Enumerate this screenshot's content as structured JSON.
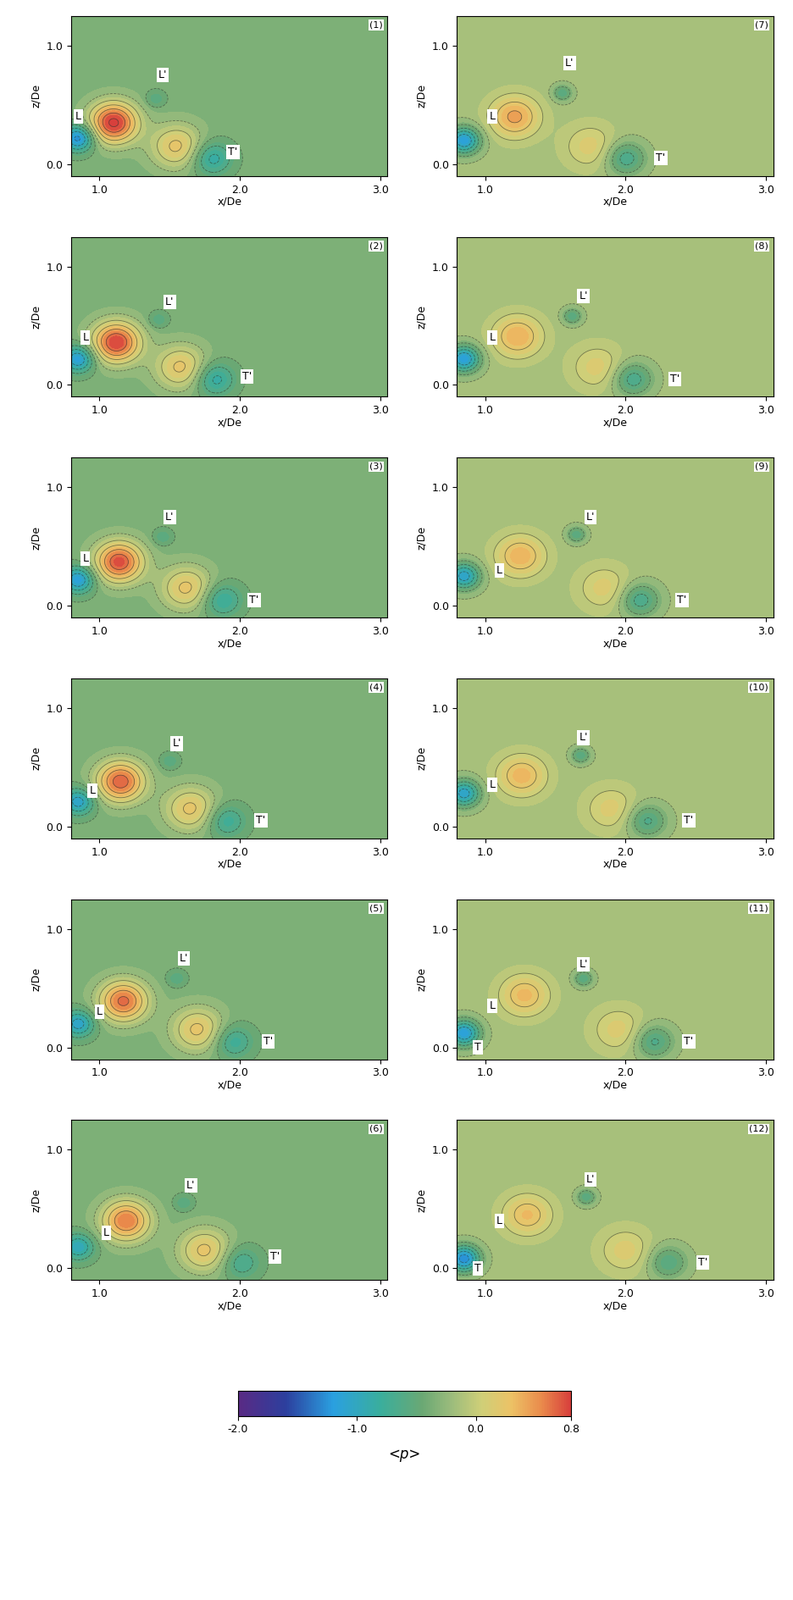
{
  "chart_data": {
    "type": "contour",
    "xlabel": "x/De",
    "ylabel": "z/De",
    "xlim": [
      0.8,
      3.05
    ],
    "ylim": [
      -0.1,
      1.25
    ],
    "xticks": [
      {
        "value": 1.0,
        "label": "1.0"
      },
      {
        "value": 2.0,
        "label": "2.0"
      },
      {
        "value": 3.0,
        "label": "3.0"
      }
    ],
    "yticks": [
      {
        "value": 0.0,
        "label": "0.0"
      },
      {
        "value": 1.0,
        "label": "1.0"
      }
    ],
    "colorbar": {
      "label": "<p>",
      "range": [
        -2.0,
        0.8
      ],
      "ticks": [
        {
          "value": -2.0,
          "label": "-2.0"
        },
        {
          "value": -1.0,
          "label": "-1.0"
        },
        {
          "value": 0.0,
          "label": "0.0"
        },
        {
          "value": 0.8,
          "label": "0.8"
        }
      ]
    },
    "panels": [
      {
        "label": "(1)",
        "background": -0.35,
        "vortices": {
          "x": [
            1.1,
            0.85,
            1.8,
            1.4,
            1.55
          ],
          "z": [
            0.35,
            0.22,
            0.05,
            0.55,
            0.15
          ],
          "p": [
            0.85,
            -1.3,
            -0.9,
            -0.6,
            0.25
          ],
          "r": [
            0.12,
            0.08,
            0.1,
            0.05,
            0.13
          ]
        },
        "annotations": [
          {
            "text": "L",
            "x": 0.85,
            "z": 0.4
          },
          {
            "text": "L'",
            "x": 1.45,
            "z": 0.75
          },
          {
            "text": "T'",
            "x": 1.95,
            "z": 0.1
          }
        ]
      },
      {
        "label": "(2)",
        "background": -0.35,
        "vortices": {
          "x": [
            1.12,
            0.85,
            1.82,
            1.42,
            1.58
          ],
          "z": [
            0.36,
            0.22,
            0.05,
            0.55,
            0.15
          ],
          "p": [
            0.8,
            -1.2,
            -0.9,
            -0.6,
            0.25
          ],
          "r": [
            0.12,
            0.08,
            0.1,
            0.05,
            0.13
          ]
        },
        "annotations": [
          {
            "text": "L",
            "x": 0.9,
            "z": 0.4
          },
          {
            "text": "L'",
            "x": 1.5,
            "z": 0.7
          },
          {
            "text": "T'",
            "x": 2.05,
            "z": 0.07
          }
        ]
      },
      {
        "label": "(3)",
        "background": -0.35,
        "vortices": {
          "x": [
            1.14,
            0.85,
            1.87,
            1.45,
            1.62
          ],
          "z": [
            0.37,
            0.22,
            0.05,
            0.58,
            0.15
          ],
          "p": [
            0.75,
            -1.2,
            -0.85,
            -0.6,
            0.25
          ],
          "r": [
            0.12,
            0.08,
            0.1,
            0.05,
            0.13
          ]
        },
        "annotations": [
          {
            "text": "L",
            "x": 0.9,
            "z": 0.4
          },
          {
            "text": "L'",
            "x": 1.5,
            "z": 0.75
          },
          {
            "text": "T'",
            "x": 2.1,
            "z": 0.05
          }
        ]
      },
      {
        "label": "(4)",
        "background": -0.35,
        "vortices": {
          "x": [
            1.15,
            0.85,
            1.9,
            1.5,
            1.65
          ],
          "z": [
            0.38,
            0.21,
            0.05,
            0.55,
            0.15
          ],
          "p": [
            0.7,
            -1.1,
            -0.8,
            -0.6,
            0.25
          ],
          "r": [
            0.12,
            0.08,
            0.1,
            0.05,
            0.13
          ]
        },
        "annotations": [
          {
            "text": "L",
            "x": 0.95,
            "z": 0.3
          },
          {
            "text": "L'",
            "x": 1.55,
            "z": 0.7
          },
          {
            "text": "T'",
            "x": 2.15,
            "z": 0.05
          }
        ]
      },
      {
        "label": "(5)",
        "background": -0.35,
        "vortices": {
          "x": [
            1.17,
            0.85,
            1.95,
            1.55,
            1.7
          ],
          "z": [
            0.39,
            0.2,
            0.05,
            0.58,
            0.15
          ],
          "p": [
            0.65,
            -1.1,
            -0.8,
            -0.6,
            0.25
          ],
          "r": [
            0.12,
            0.08,
            0.1,
            0.05,
            0.13
          ]
        },
        "annotations": [
          {
            "text": "L",
            "x": 1.0,
            "z": 0.3
          },
          {
            "text": "L'",
            "x": 1.6,
            "z": 0.75
          },
          {
            "text": "T'",
            "x": 2.2,
            "z": 0.05
          }
        ]
      },
      {
        "label": "(6)",
        "background": -0.35,
        "vortices": {
          "x": [
            1.19,
            0.85,
            2.0,
            1.6,
            1.75
          ],
          "z": [
            0.4,
            0.18,
            0.05,
            0.55,
            0.15
          ],
          "p": [
            0.6,
            -1.0,
            -0.75,
            -0.6,
            0.25
          ],
          "r": [
            0.12,
            0.08,
            0.1,
            0.05,
            0.13
          ]
        },
        "annotations": [
          {
            "text": "L",
            "x": 1.05,
            "z": 0.3
          },
          {
            "text": "L'",
            "x": 1.65,
            "z": 0.7
          },
          {
            "text": "T'",
            "x": 2.25,
            "z": 0.1
          }
        ]
      },
      {
        "label": "(7)",
        "background": -0.15,
        "vortices": {
          "x": [
            1.21,
            0.85,
            2.0,
            1.55,
            1.75
          ],
          "z": [
            0.4,
            0.2,
            0.05,
            0.6,
            0.15
          ],
          "p": [
            0.45,
            -1.2,
            -0.7,
            -0.6,
            0.15
          ],
          "r": [
            0.12,
            0.08,
            0.1,
            0.05,
            0.13
          ]
        },
        "annotations": [
          {
            "text": "L",
            "x": 1.05,
            "z": 0.4
          },
          {
            "text": "L'",
            "x": 1.6,
            "z": 0.85
          },
          {
            "text": "T'",
            "x": 2.25,
            "z": 0.05
          }
        ]
      },
      {
        "label": "(8)",
        "background": -0.15,
        "vortices": {
          "x": [
            1.23,
            0.85,
            2.05,
            1.62,
            1.8
          ],
          "z": [
            0.41,
            0.22,
            0.05,
            0.58,
            0.15
          ],
          "p": [
            0.4,
            -1.2,
            -0.7,
            -0.6,
            0.15
          ],
          "r": [
            0.12,
            0.08,
            0.1,
            0.05,
            0.13
          ]
        },
        "annotations": [
          {
            "text": "L",
            "x": 1.05,
            "z": 0.4
          },
          {
            "text": "L'",
            "x": 1.7,
            "z": 0.75
          },
          {
            "text": "T'",
            "x": 2.35,
            "z": 0.05
          }
        ]
      },
      {
        "label": "(9)",
        "background": -0.15,
        "vortices": {
          "x": [
            1.25,
            0.85,
            2.1,
            1.65,
            1.85
          ],
          "z": [
            0.42,
            0.25,
            0.05,
            0.6,
            0.15
          ],
          "p": [
            0.38,
            -1.1,
            -0.7,
            -0.6,
            0.15
          ],
          "r": [
            0.12,
            0.08,
            0.1,
            0.05,
            0.13
          ]
        },
        "annotations": [
          {
            "text": "L",
            "x": 1.1,
            "z": 0.3
          },
          {
            "text": "L'",
            "x": 1.75,
            "z": 0.75
          },
          {
            "text": "T'",
            "x": 2.4,
            "z": 0.05
          }
        ]
      },
      {
        "label": "(10)",
        "background": -0.15,
        "vortices": {
          "x": [
            1.26,
            0.85,
            2.15,
            1.68,
            1.9
          ],
          "z": [
            0.43,
            0.28,
            0.05,
            0.6,
            0.15
          ],
          "p": [
            0.36,
            -1.1,
            -0.65,
            -0.6,
            0.15
          ],
          "r": [
            0.12,
            0.08,
            0.1,
            0.05,
            0.13
          ]
        },
        "annotations": [
          {
            "text": "L",
            "x": 1.05,
            "z": 0.35
          },
          {
            "text": "L'",
            "x": 1.7,
            "z": 0.75
          },
          {
            "text": "T'",
            "x": 2.45,
            "z": 0.05
          }
        ]
      },
      {
        "label": "(11)",
        "background": -0.15,
        "vortices": {
          "x": [
            1.28,
            0.85,
            2.2,
            1.7,
            1.95
          ],
          "z": [
            0.44,
            0.12,
            0.05,
            0.58,
            0.15
          ],
          "p": [
            0.34,
            -1.2,
            -0.65,
            -0.6,
            0.15
          ],
          "r": [
            0.12,
            0.08,
            0.1,
            0.05,
            0.13
          ]
        },
        "annotations": [
          {
            "text": "L",
            "x": 1.05,
            "z": 0.35
          },
          {
            "text": "L'",
            "x": 1.7,
            "z": 0.7
          },
          {
            "text": "T'",
            "x": 2.45,
            "z": 0.05
          },
          {
            "text": "T",
            "x": 0.95,
            "z": 0.0
          }
        ]
      },
      {
        "label": "(12)",
        "background": -0.15,
        "vortices": {
          "x": [
            1.3,
            0.85,
            2.3,
            1.72,
            2.0
          ],
          "z": [
            0.45,
            0.08,
            0.05,
            0.6,
            0.15
          ],
          "p": [
            0.32,
            -1.3,
            -0.6,
            -0.6,
            0.15
          ],
          "r": [
            0.12,
            0.08,
            0.1,
            0.05,
            0.13
          ]
        },
        "annotations": [
          {
            "text": "L",
            "x": 1.1,
            "z": 0.4
          },
          {
            "text": "L'",
            "x": 1.75,
            "z": 0.75
          },
          {
            "text": "T'",
            "x": 2.55,
            "z": 0.05
          },
          {
            "text": "T",
            "x": 0.95,
            "z": 0.0
          }
        ]
      }
    ]
  }
}
